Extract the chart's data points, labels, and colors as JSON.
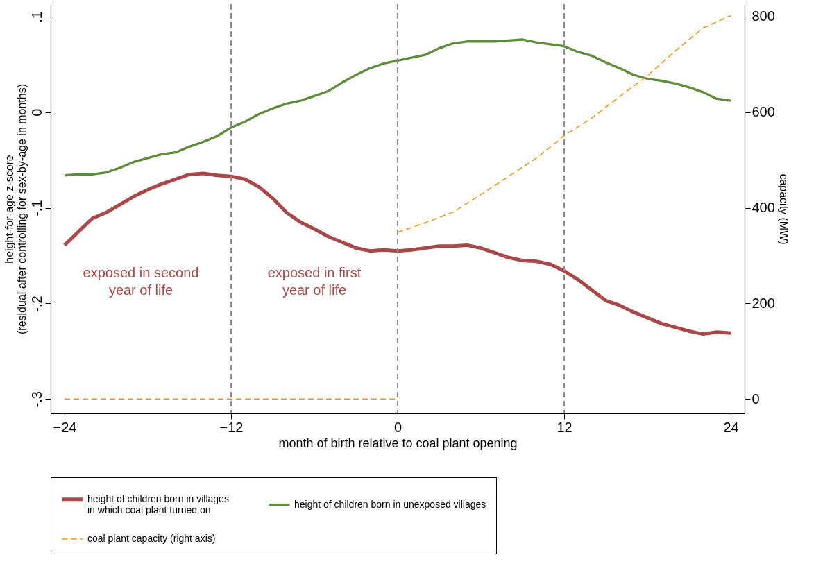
{
  "chart_data": {
    "type": "line",
    "xlabel": "month of birth relative to coal plant opening",
    "ylabel": "height-for-age z-score\n(residual after controlling for sex-by-age in months)",
    "y2label": "capacity (MW)",
    "xlim": [
      -25,
      25
    ],
    "xticks": [
      -24,
      -12,
      0,
      12,
      24
    ],
    "ylim": [
      -0.315,
      0.113
    ],
    "yticks": [
      {
        "value": -0.3,
        "label": "-.3"
      },
      {
        "value": -0.2,
        "label": "-.2"
      },
      {
        "value": -0.1,
        "label": "-.1"
      },
      0,
      {
        "value": 0.1,
        "label": ".1"
      }
    ],
    "y2lim": [
      -30,
      826
    ],
    "y2ticks": [
      0,
      200,
      400,
      600,
      800
    ],
    "grid": false,
    "legend": "bottom",
    "series": [
      {
        "name": "height of children born in villages\nin which coal plant turned on",
        "color": "#a94848",
        "line_style": "solid",
        "x": [
          -24,
          -23,
          -22,
          -21,
          -19,
          -18,
          -17,
          -16,
          -15,
          -14,
          -13,
          -12,
          -11,
          -10,
          -9,
          -8,
          -7,
          -6,
          -5,
          -4,
          -3,
          -2,
          -1,
          0,
          1,
          2,
          3,
          4,
          5,
          6,
          7,
          8,
          9,
          10,
          11,
          12,
          13,
          14,
          15,
          16,
          17,
          18,
          19,
          20,
          21,
          22,
          23,
          24
        ],
        "values": [
          -0.139,
          -0.125,
          -0.111,
          -0.105,
          -0.088,
          -0.081,
          -0.075,
          -0.07,
          -0.065,
          -0.064,
          -0.066,
          -0.067,
          -0.07,
          -0.078,
          -0.09,
          -0.105,
          -0.115,
          -0.122,
          -0.13,
          -0.136,
          -0.142,
          -0.145,
          -0.144,
          -0.145,
          -0.144,
          -0.142,
          -0.14,
          -0.14,
          -0.139,
          -0.142,
          -0.147,
          -0.152,
          -0.155,
          -0.156,
          -0.159,
          -0.166,
          -0.175,
          -0.186,
          -0.197,
          -0.202,
          -0.209,
          -0.215,
          -0.221,
          -0.225,
          -0.229,
          -0.232,
          -0.23,
          -0.231
        ]
      },
      {
        "name": "height of children born in unexposed villages",
        "color": "#5e8c3b",
        "line_style": "solid",
        "x": [
          -24,
          -23,
          -22,
          -21,
          -20,
          -19,
          -18,
          -17,
          -16,
          -15,
          -14,
          -13,
          -12,
          -11,
          -10,
          -9,
          -8,
          -7,
          -6,
          -5,
          -4,
          -3,
          -2,
          -1,
          0,
          1,
          2,
          3,
          4,
          5,
          6,
          7,
          8,
          9,
          10,
          11,
          12,
          13,
          14,
          15,
          16,
          17,
          18,
          19,
          20,
          21,
          22,
          23,
          24
        ],
        "values": [
          -0.066,
          -0.065,
          -0.065,
          -0.063,
          -0.058,
          -0.052,
          -0.048,
          -0.044,
          -0.042,
          -0.036,
          -0.031,
          -0.025,
          -0.016,
          -0.01,
          -0.002,
          0.004,
          0.009,
          0.012,
          0.017,
          0.022,
          0.031,
          0.039,
          0.046,
          0.051,
          0.054,
          0.057,
          0.06,
          0.067,
          0.072,
          0.074,
          0.074,
          0.074,
          0.075,
          0.076,
          0.073,
          0.071,
          0.069,
          0.063,
          0.059,
          0.052,
          0.046,
          0.039,
          0.035,
          0.033,
          0.03,
          0.026,
          0.021,
          0.014,
          0.012
        ]
      },
      {
        "name": "coal plant capacity (right axis)",
        "color": "#ef961a",
        "line_style": "dashed",
        "axis": "y2",
        "x": [
          -24,
          -12,
          0,
          0,
          2,
          4,
          6,
          8,
          10,
          12,
          14,
          16,
          18,
          20,
          22,
          24
        ],
        "values": [
          0,
          0,
          0,
          349,
          369,
          391,
          428,
          466,
          504,
          551,
          588,
          633,
          676,
          728,
          776,
          802
        ]
      }
    ],
    "ref_lines": [
      {
        "axis": "x",
        "value": -12,
        "color": "#8c8c8c",
        "line_style": "dashed"
      },
      {
        "axis": "x",
        "value": 0,
        "color": "#8c8c8c",
        "line_style": "dashed"
      },
      {
        "axis": "x",
        "value": 12,
        "color": "#8c8c8c",
        "line_style": "dashed"
      }
    ],
    "annotations": [
      "exposed in second\nyear of life",
      "exposed in first\nyear of life"
    ]
  }
}
